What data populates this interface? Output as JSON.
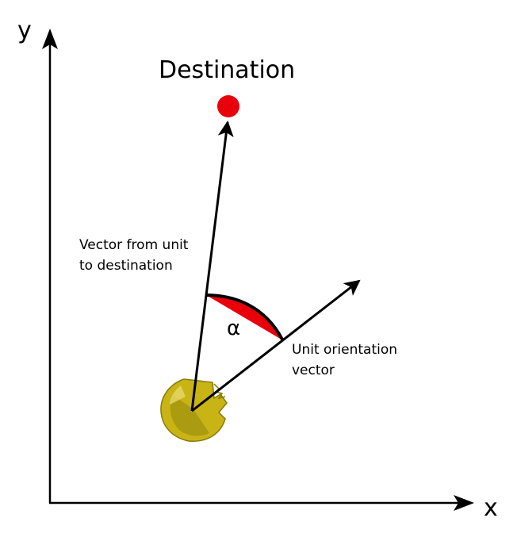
{
  "axes": {
    "x_label": "x",
    "y_label": "y"
  },
  "destination": {
    "label": "Destination",
    "marker_color": "#e8000b"
  },
  "vectors": {
    "to_destination_label_line1": "Vector from unit",
    "to_destination_label_line2": "to destination",
    "orientation_label_line1": "Unit orientation",
    "orientation_label_line2": "vector"
  },
  "angle": {
    "symbol": "α",
    "fill_color": "#e8000b"
  },
  "unit": {
    "icon": "unit-sprite-icon",
    "color": "#c8b414"
  }
}
